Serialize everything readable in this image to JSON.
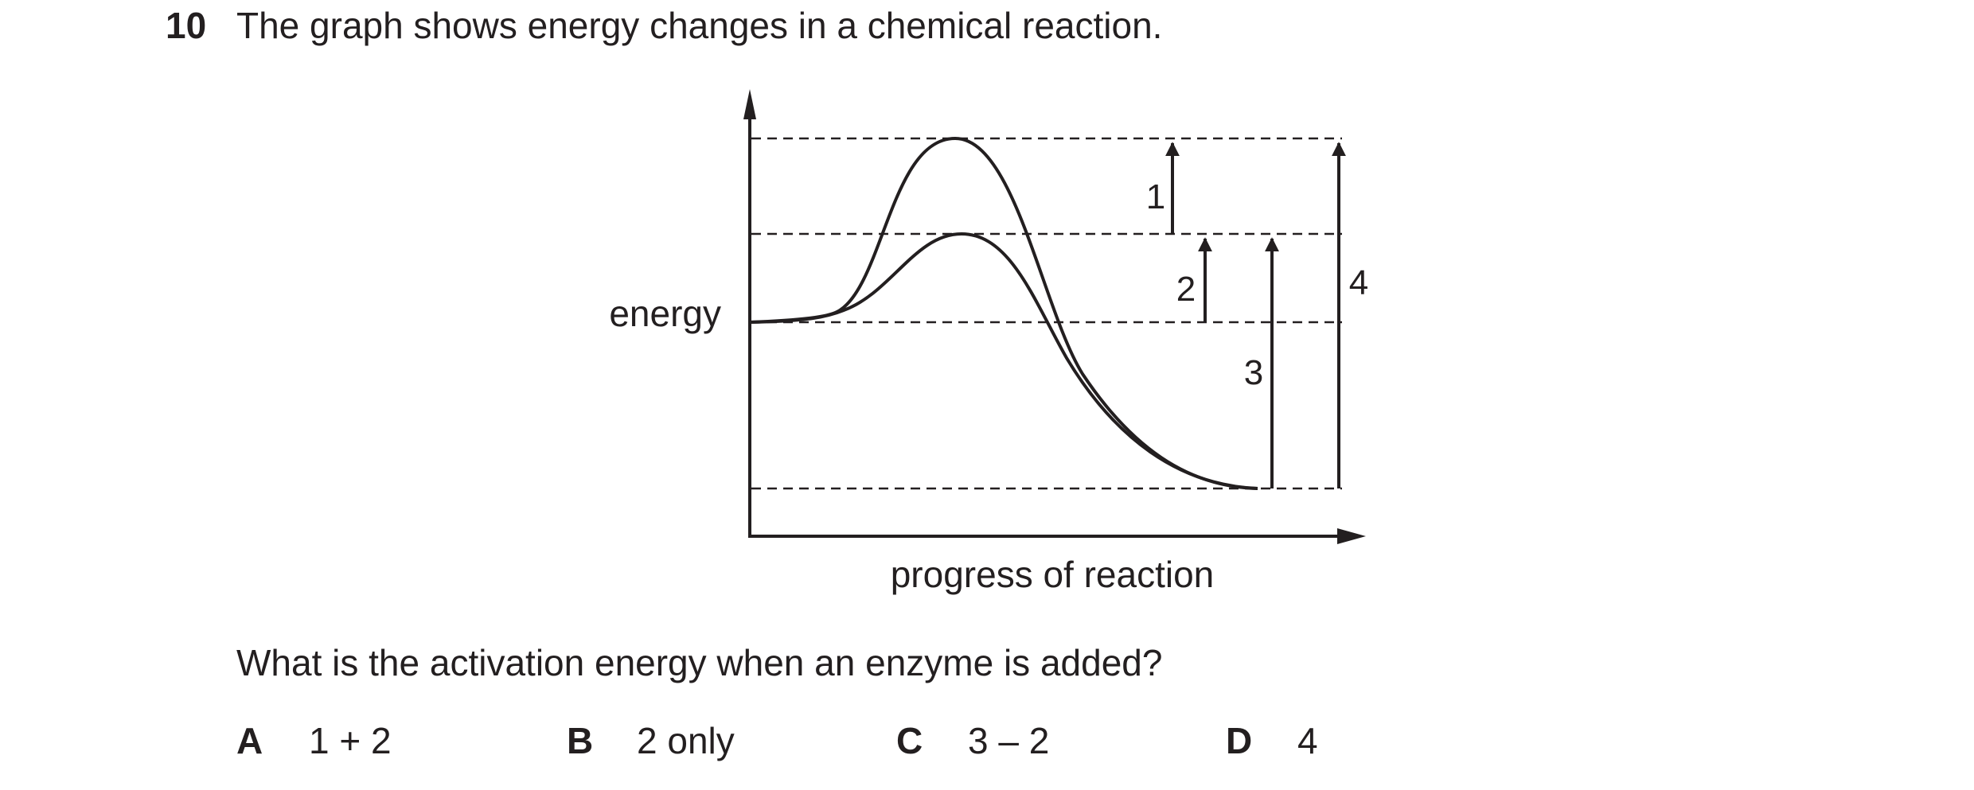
{
  "question": {
    "number": "10",
    "text": "The graph shows energy changes in a chemical reaction.",
    "prompt": "What is the activation energy when an enzyme is added?"
  },
  "diagram": {
    "y_axis_label": "energy",
    "x_axis_label": "progress of reaction",
    "arrow_labels": [
      "1",
      "2",
      "3",
      "4"
    ]
  },
  "options": [
    {
      "letter": "A",
      "text": "1 + 2"
    },
    {
      "letter": "B",
      "text": "2 only"
    },
    {
      "letter": "C",
      "text": "3 – 2"
    },
    {
      "letter": "D",
      "text": "4"
    }
  ]
}
